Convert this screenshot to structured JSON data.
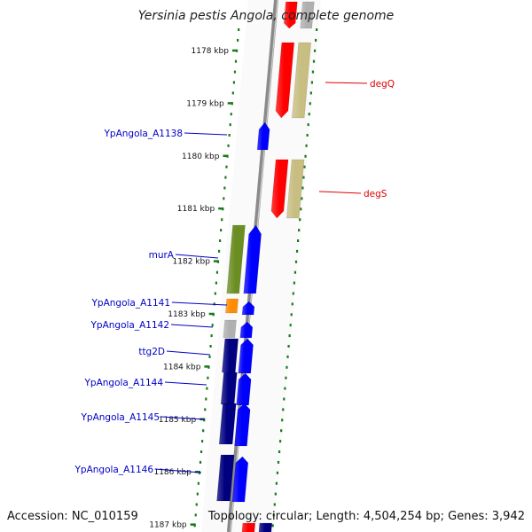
{
  "title": "Yersinia pestis Angola, complete genome",
  "accession": "Accession: NC_010159",
  "topology": "Topology: circular; Length: 4,504,254 bp; Genes: 3,942",
  "colors": {
    "backbone": "#8a8a8a",
    "ruler_tick": "#1a7a1a",
    "gene_blue": "#0000ff",
    "gene_navy": "#000080",
    "gene_red": "#ff0000",
    "gene_khaki": "#c8be82",
    "gene_olive": "#6b8e23",
    "gene_orange": "#ff8c00",
    "gene_gray": "#b0b0b0",
    "label_blue": "#0000c8",
    "label_red": "#e00000"
  },
  "ruler": [
    {
      "kbp": 1178,
      "label": "1178 kbp"
    },
    {
      "kbp": 1179,
      "label": "1179 kbp"
    },
    {
      "kbp": 1180,
      "label": "1180 kbp"
    },
    {
      "kbp": 1181,
      "label": "1181 kbp"
    },
    {
      "kbp": 1182,
      "label": "1182 kbp"
    },
    {
      "kbp": 1183,
      "label": "1183 kbp"
    },
    {
      "kbp": 1184,
      "label": "1184 kbp"
    },
    {
      "kbp": 1185,
      "label": "1185 kbp"
    },
    {
      "kbp": 1186,
      "label": "1186 kbp"
    },
    {
      "kbp": 1187,
      "label": "1187 kbp"
    }
  ],
  "labels_left": [
    {
      "name": "YpAngola_A1138",
      "gene": "YpAngola_A1138"
    },
    {
      "name": "murA",
      "gene": "murA"
    },
    {
      "name": "YpAngola_A1141",
      "gene": "YpAngola_A1141"
    },
    {
      "name": "YpAngola_A1142",
      "gene": "YpAngola_A1142"
    },
    {
      "name": "ttg2D",
      "gene": "ttg2D"
    },
    {
      "name": "YpAngola_A1144",
      "gene": "YpAngola_A1144"
    },
    {
      "name": "YpAngola_A1145",
      "gene": "YpAngola_A1145"
    },
    {
      "name": "YpAngola_A1146",
      "gene": "YpAngola_A1146"
    }
  ],
  "labels_right": [
    {
      "name": "degQ",
      "gene": "degQ"
    },
    {
      "name": "degS",
      "gene": "degS"
    }
  ]
}
